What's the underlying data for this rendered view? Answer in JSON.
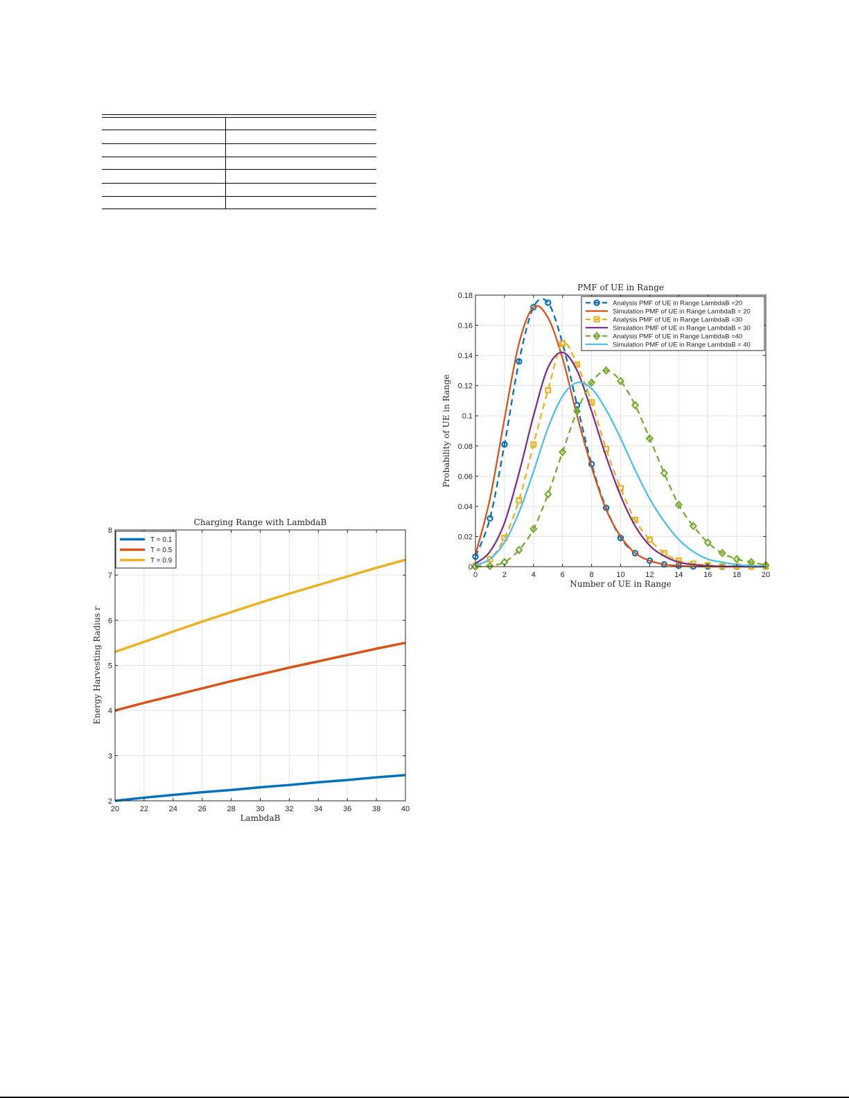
{
  "table": {
    "rows": 7,
    "columns": 2,
    "cells": [
      [
        "",
        ""
      ],
      [
        "",
        ""
      ],
      [
        "",
        ""
      ],
      [
        "",
        ""
      ],
      [
        "",
        ""
      ],
      [
        "",
        ""
      ],
      [
        "",
        ""
      ]
    ]
  },
  "chart_data": [
    {
      "type": "line",
      "title": "Charging Range with LambdaB",
      "xlabel": "LambdaB",
      "ylabel": "Energy Harvesting Radius r",
      "xlim": [
        20,
        40
      ],
      "ylim": [
        2,
        8
      ],
      "xticks": [
        20,
        22,
        24,
        26,
        28,
        30,
        32,
        34,
        36,
        38,
        40
      ],
      "yticks": [
        2,
        3,
        4,
        5,
        6,
        7,
        8
      ],
      "grid": true,
      "legend_position": "upper left",
      "x": [
        20,
        22,
        24,
        26,
        28,
        30,
        32,
        34,
        36,
        38,
        40
      ],
      "series": [
        {
          "name": "T = 0.1",
          "color": "#0072BD",
          "values": [
            2.0,
            2.07,
            2.13,
            2.19,
            2.24,
            2.3,
            2.35,
            2.41,
            2.46,
            2.52,
            2.57
          ]
        },
        {
          "name": "T = 0.5",
          "color": "#D95319",
          "values": [
            4.0,
            4.17,
            4.33,
            4.49,
            4.65,
            4.8,
            4.95,
            5.09,
            5.23,
            5.37,
            5.5
          ]
        },
        {
          "name": "T = 0.9",
          "color": "#EDB120",
          "values": [
            5.3,
            5.52,
            5.75,
            5.97,
            6.18,
            6.39,
            6.59,
            6.78,
            6.97,
            7.16,
            7.34
          ]
        }
      ]
    },
    {
      "type": "line",
      "title": "PMF of UE in Range",
      "xlabel": "Number of UE in Range",
      "ylabel": "Probability of UE in Range",
      "xlim": [
        0,
        20
      ],
      "ylim": [
        0,
        0.18
      ],
      "xticks": [
        0,
        2,
        4,
        6,
        8,
        10,
        12,
        14,
        16,
        18,
        20
      ],
      "yticks": [
        0,
        0.02,
        0.04,
        0.06,
        0.08,
        0.1,
        0.12,
        0.14,
        0.16,
        0.18
      ],
      "ytick_labels": [
        "0",
        "0.02",
        "0.04",
        "0.06",
        "0.08",
        "0.1",
        "0.12",
        "0.14",
        "0.16",
        "0.18"
      ],
      "grid": true,
      "legend_position": "upper right",
      "x": [
        0,
        1,
        2,
        3,
        4,
        5,
        6,
        7,
        8,
        9,
        10,
        11,
        12,
        13,
        14,
        15,
        16,
        17,
        18,
        19,
        20
      ],
      "series": [
        {
          "name": "Analysis PMF of UE in Range LambdaB =20",
          "style": "dashed-circle",
          "color": "#0072BD",
          "values": [
            0.0067,
            0.032,
            0.081,
            0.136,
            0.172,
            0.175,
            0.148,
            0.107,
            0.068,
            0.039,
            0.019,
            0.009,
            0.004,
            0.0015,
            0.0006,
            0.0002,
            0.0001,
            0,
            0,
            0,
            0
          ]
        },
        {
          "name": "Simulation PMF of UE in Range LambdaB = 20",
          "style": "solid",
          "color": "#D95319",
          "values": [
            0.008,
            0.045,
            0.098,
            0.148,
            0.172,
            0.165,
            0.138,
            0.1,
            0.066,
            0.038,
            0.02,
            0.009,
            0.004,
            0.0015,
            0.0005,
            0.0002,
            0,
            0,
            0,
            0,
            0
          ]
        },
        {
          "name": "Analysis PMF of UE in Range LambdaB =30",
          "style": "dashed-square",
          "color": "#EDB120",
          "values": [
            0.0005,
            0.005,
            0.019,
            0.044,
            0.081,
            0.117,
            0.148,
            0.134,
            0.109,
            0.078,
            0.052,
            0.031,
            0.018,
            0.009,
            0.004,
            0.002,
            0.001,
            0.0004,
            0.0002,
            0.0001,
            0
          ]
        },
        {
          "name": "Simulation PMF of UE in Range LambdaB = 30",
          "style": "solid",
          "color": "#7E2F8E",
          "values": [
            0.002,
            0.01,
            0.029,
            0.062,
            0.1,
            0.132,
            0.142,
            0.13,
            0.103,
            0.073,
            0.047,
            0.027,
            0.014,
            0.007,
            0.003,
            0.0013,
            0.0005,
            0.0002,
            0.0001,
            0,
            0
          ]
        },
        {
          "name": "Analysis PMF of UE in Range LambdaB =40",
          "style": "dashed-diamond",
          "color": "#77AC30",
          "values": [
            0.0001,
            0.0005,
            0.003,
            0.011,
            0.025,
            0.048,
            0.076,
            0.103,
            0.122,
            0.13,
            0.123,
            0.107,
            0.085,
            0.062,
            0.041,
            0.027,
            0.016,
            0.009,
            0.005,
            0.003,
            0.001
          ]
        },
        {
          "name": "Simulation PMF of UE in Range LambdaB = 40",
          "style": "solid",
          "color": "#4DBEEE",
          "values": [
            0.001,
            0.005,
            0.016,
            0.036,
            0.063,
            0.092,
            0.113,
            0.122,
            0.118,
            0.104,
            0.085,
            0.064,
            0.045,
            0.03,
            0.018,
            0.01,
            0.005,
            0.003,
            0.0013,
            0.0006,
            0.0003
          ]
        }
      ]
    }
  ]
}
